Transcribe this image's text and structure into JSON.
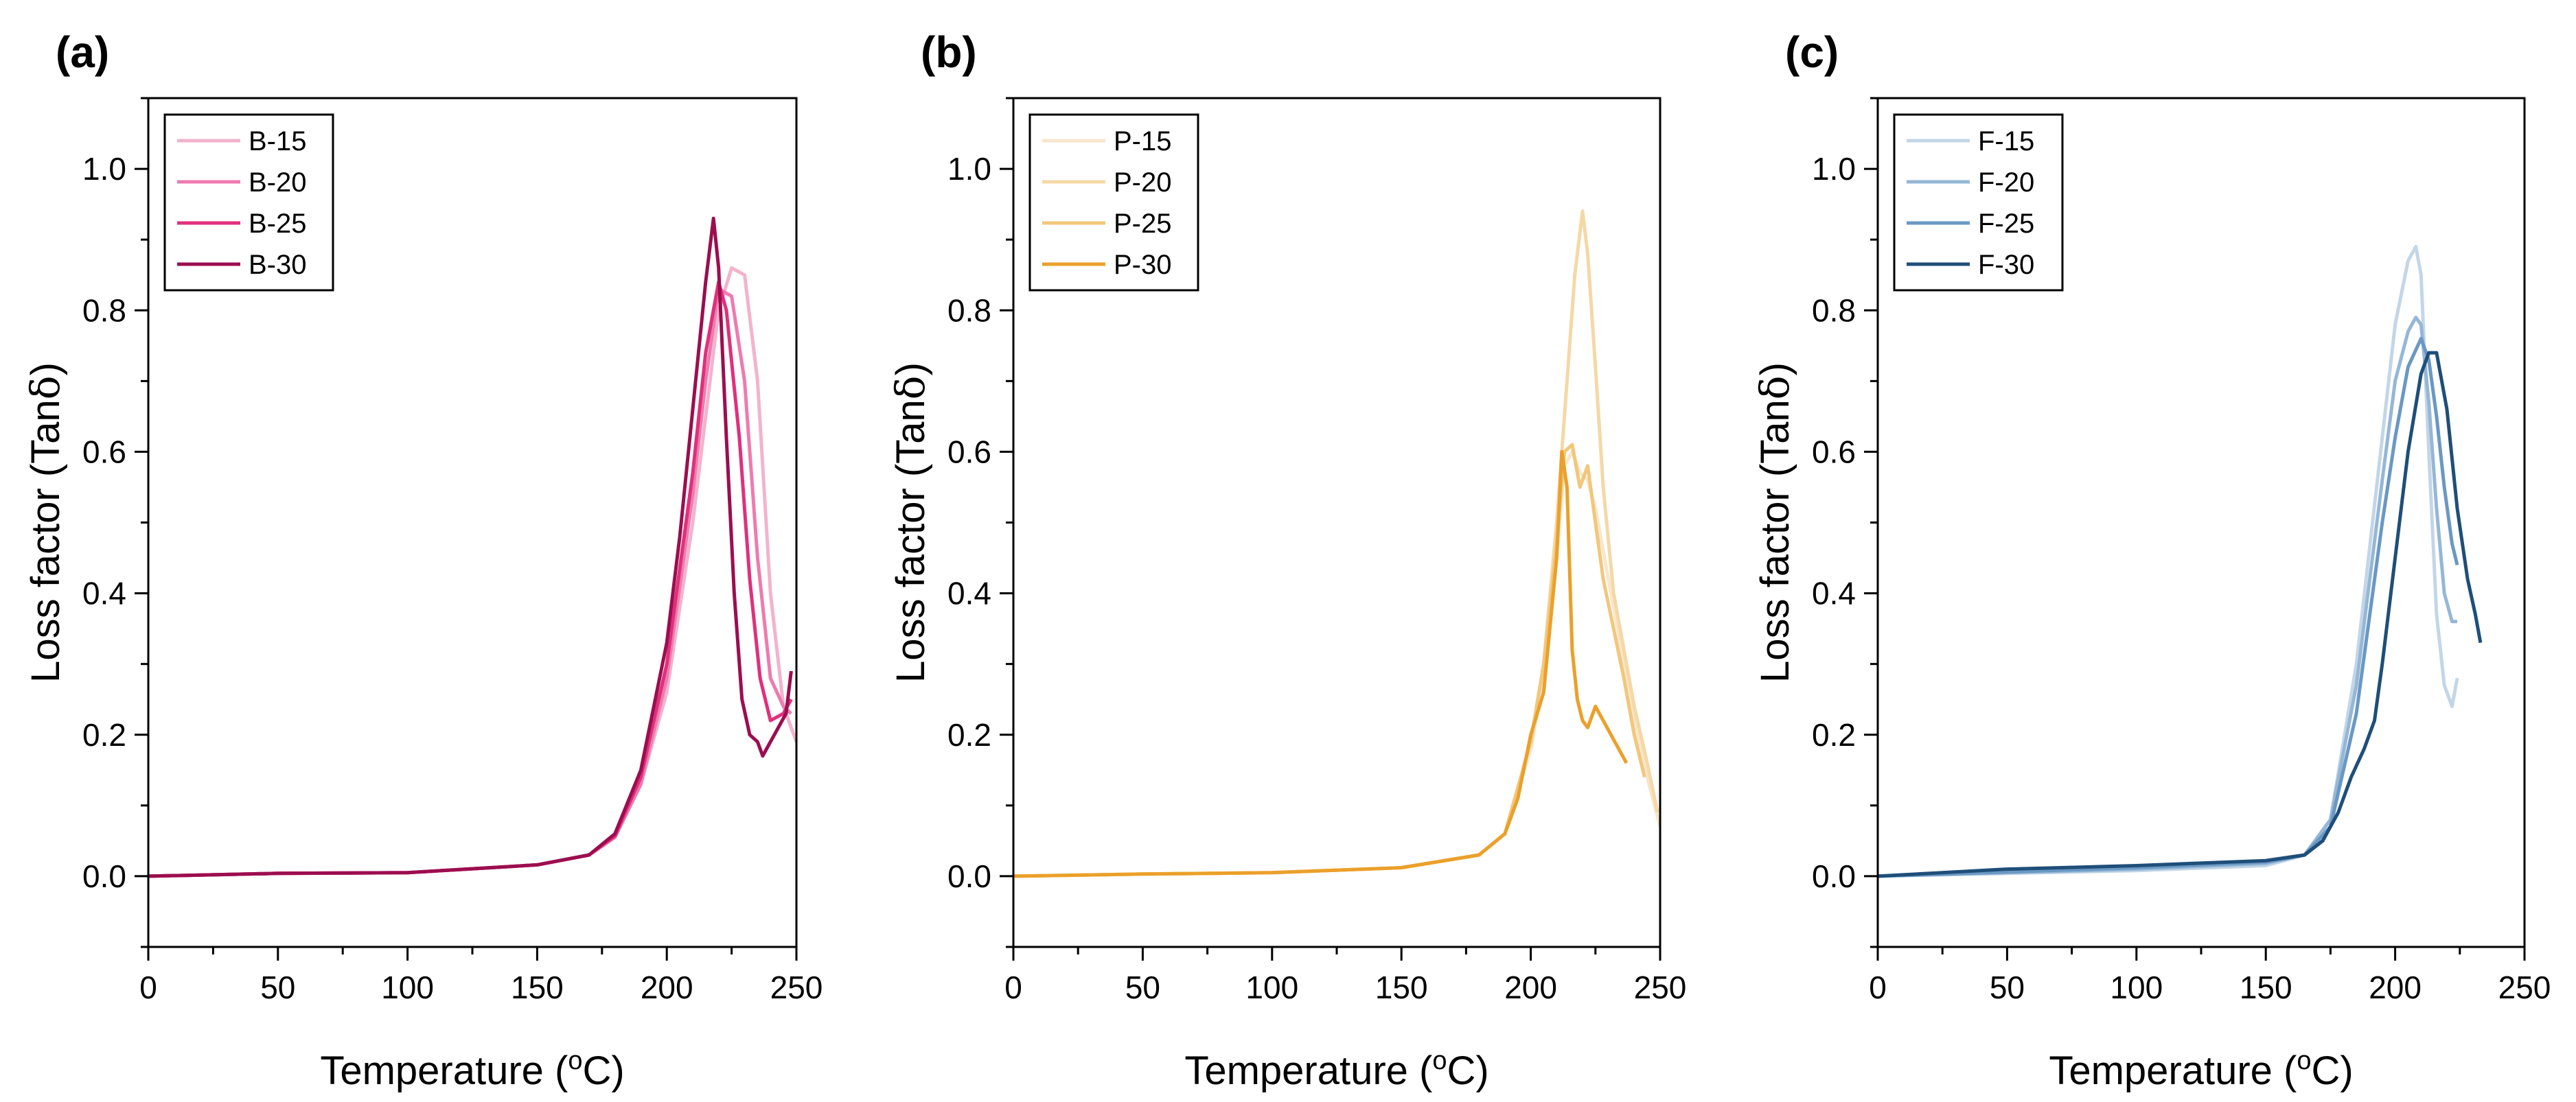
{
  "figure": {
    "background": "#ffffff"
  },
  "chart_data": [
    {
      "type": "line",
      "panel_label": "(a)",
      "xlabel": "Temperature (",
      "xlabel_sup": "o",
      "xlabel_unit": "C)",
      "ylabel": "Loss factor (Tan",
      "ylabel_symbol": "δ",
      "ylabel_close": ")",
      "xlim": [
        0,
        250
      ],
      "ylim": [
        -0.1,
        1.1
      ],
      "xticks": [
        0,
        50,
        100,
        150,
        200,
        250
      ],
      "xtick_labels": [
        "0",
        "50",
        "100",
        "150",
        "200",
        "250"
      ],
      "yticks": [
        0.0,
        0.2,
        0.4,
        0.6,
        0.8,
        1.0
      ],
      "ytick_labels": [
        "0.0",
        "0.2",
        "0.4",
        "0.6",
        "0.8",
        "1.0"
      ],
      "legend_position": "top-left",
      "series": [
        {
          "name": "B-15",
          "color": "#f3b3cc",
          "x": [
            0,
            50,
            100,
            150,
            170,
            180,
            190,
            200,
            210,
            215,
            220,
            225,
            230,
            235,
            240,
            245,
            250
          ],
          "y": [
            0.0,
            0.004,
            0.005,
            0.016,
            0.03,
            0.055,
            0.13,
            0.26,
            0.5,
            0.65,
            0.8,
            0.86,
            0.85,
            0.7,
            0.4,
            0.24,
            0.19
          ]
        },
        {
          "name": "B-20",
          "color": "#ee7bb0",
          "x": [
            0,
            50,
            100,
            150,
            170,
            180,
            190,
            200,
            210,
            215,
            220,
            225,
            230,
            235,
            240,
            245,
            248
          ],
          "y": [
            0.0,
            0.004,
            0.005,
            0.016,
            0.03,
            0.055,
            0.13,
            0.28,
            0.54,
            0.7,
            0.83,
            0.82,
            0.7,
            0.45,
            0.28,
            0.24,
            0.23
          ]
        },
        {
          "name": "B-25",
          "color": "#e0307c",
          "x": [
            0,
            50,
            100,
            150,
            170,
            180,
            190,
            200,
            210,
            215,
            220,
            223,
            228,
            232,
            236,
            240,
            245,
            248
          ],
          "y": [
            0.0,
            0.004,
            0.005,
            0.016,
            0.03,
            0.057,
            0.14,
            0.3,
            0.57,
            0.74,
            0.84,
            0.8,
            0.62,
            0.42,
            0.28,
            0.22,
            0.23,
            0.25
          ]
        },
        {
          "name": "B-30",
          "color": "#9b0e4f",
          "x": [
            0,
            50,
            100,
            150,
            170,
            180,
            190,
            200,
            205,
            210,
            215,
            218,
            220,
            223,
            226,
            229,
            232,
            235,
            237,
            240,
            243,
            246,
            248
          ],
          "y": [
            0.0,
            0.004,
            0.005,
            0.016,
            0.03,
            0.06,
            0.15,
            0.33,
            0.48,
            0.66,
            0.84,
            0.93,
            0.86,
            0.62,
            0.4,
            0.25,
            0.2,
            0.19,
            0.17,
            0.19,
            0.21,
            0.23,
            0.29
          ]
        }
      ]
    },
    {
      "type": "line",
      "panel_label": "(b)",
      "xlabel": "Temperature (",
      "xlabel_sup": "o",
      "xlabel_unit": "C)",
      "ylabel": "Loss factor (Tan",
      "ylabel_symbol": "δ",
      "ylabel_close": ")",
      "xlim": [
        0,
        250
      ],
      "ylim": [
        -0.1,
        1.1
      ],
      "xticks": [
        0,
        50,
        100,
        150,
        200,
        250
      ],
      "xtick_labels": [
        "0",
        "50",
        "100",
        "150",
        "200",
        "250"
      ],
      "yticks": [
        0.0,
        0.2,
        0.4,
        0.6,
        0.8,
        1.0
      ],
      "ytick_labels": [
        "0.0",
        "0.2",
        "0.4",
        "0.6",
        "0.8",
        "1.0"
      ],
      "legend_position": "top-left",
      "series": [
        {
          "name": "P-15",
          "color": "#f8e6cc",
          "x": [
            0,
            50,
            100,
            150,
            180,
            190,
            200,
            205,
            210,
            213,
            216,
            219,
            222,
            225,
            228,
            232,
            236,
            240,
            245,
            250
          ],
          "y": [
            0.0,
            0.003,
            0.005,
            0.012,
            0.03,
            0.06,
            0.18,
            0.28,
            0.45,
            0.58,
            0.6,
            0.57,
            0.56,
            0.52,
            0.46,
            0.38,
            0.3,
            0.22,
            0.14,
            0.07
          ]
        },
        {
          "name": "P-20",
          "color": "#f5d8a6",
          "x": [
            0,
            50,
            100,
            150,
            180,
            190,
            200,
            205,
            210,
            214,
            217,
            220,
            222,
            225,
            228,
            232,
            236,
            240,
            245,
            249
          ],
          "y": [
            0.0,
            0.003,
            0.005,
            0.012,
            0.03,
            0.06,
            0.19,
            0.3,
            0.5,
            0.7,
            0.85,
            0.94,
            0.88,
            0.72,
            0.55,
            0.4,
            0.32,
            0.24,
            0.16,
            0.09
          ]
        },
        {
          "name": "P-25",
          "color": "#f2c77b",
          "x": [
            0,
            50,
            100,
            150,
            180,
            190,
            200,
            205,
            210,
            213,
            216,
            219,
            222,
            225,
            228,
            232,
            236,
            240,
            244
          ],
          "y": [
            0.0,
            0.003,
            0.005,
            0.012,
            0.03,
            0.06,
            0.19,
            0.3,
            0.47,
            0.6,
            0.61,
            0.55,
            0.58,
            0.5,
            0.42,
            0.35,
            0.28,
            0.2,
            0.14
          ]
        },
        {
          "name": "P-30",
          "color": "#eba02a",
          "x": [
            0,
            50,
            100,
            150,
            180,
            190,
            195,
            200,
            205,
            210,
            212,
            214,
            216,
            218,
            220,
            222,
            225,
            228,
            231,
            234,
            237
          ],
          "y": [
            0.0,
            0.003,
            0.005,
            0.012,
            0.03,
            0.06,
            0.11,
            0.2,
            0.26,
            0.45,
            0.6,
            0.55,
            0.32,
            0.25,
            0.22,
            0.21,
            0.24,
            0.22,
            0.2,
            0.18,
            0.16
          ]
        }
      ]
    },
    {
      "type": "line",
      "panel_label": "(c)",
      "xlabel": "Temperature (",
      "xlabel_sup": "o",
      "xlabel_unit": "C)",
      "ylabel": "Loss factor (Tan",
      "ylabel_symbol": "δ",
      "ylabel_close": ")",
      "xlim": [
        0,
        250
      ],
      "ylim": [
        -0.1,
        1.1
      ],
      "xticks": [
        0,
        50,
        100,
        150,
        200,
        250
      ],
      "xtick_labels": [
        "0",
        "50",
        "100",
        "150",
        "200",
        "250"
      ],
      "yticks": [
        0.0,
        0.2,
        0.4,
        0.6,
        0.8,
        1.0
      ],
      "ytick_labels": [
        "0.0",
        "0.2",
        "0.4",
        "0.6",
        "0.8",
        "1.0"
      ],
      "legend_position": "top-left",
      "series": [
        {
          "name": "F-15",
          "color": "#c3d6e8",
          "x": [
            0,
            50,
            100,
            150,
            165,
            175,
            185,
            195,
            200,
            205,
            208,
            210,
            213,
            216,
            219,
            222,
            224
          ],
          "y": [
            0.0,
            0.004,
            0.008,
            0.015,
            0.03,
            0.08,
            0.3,
            0.62,
            0.78,
            0.87,
            0.89,
            0.85,
            0.6,
            0.37,
            0.27,
            0.24,
            0.28
          ]
        },
        {
          "name": "F-20",
          "color": "#95b7d7",
          "x": [
            0,
            50,
            100,
            150,
            165,
            175,
            185,
            195,
            200,
            205,
            208,
            210,
            213,
            216,
            219,
            222,
            224
          ],
          "y": [
            0.0,
            0.005,
            0.01,
            0.018,
            0.03,
            0.08,
            0.27,
            0.56,
            0.7,
            0.77,
            0.79,
            0.78,
            0.67,
            0.52,
            0.4,
            0.36,
            0.36
          ]
        },
        {
          "name": "F-25",
          "color": "#6a98c4",
          "x": [
            0,
            50,
            100,
            150,
            165,
            175,
            185,
            195,
            200,
            205,
            210,
            213,
            216,
            219,
            222,
            224
          ],
          "y": [
            0.0,
            0.006,
            0.012,
            0.02,
            0.03,
            0.07,
            0.23,
            0.5,
            0.62,
            0.72,
            0.76,
            0.73,
            0.65,
            0.55,
            0.47,
            0.44
          ]
        },
        {
          "name": "F-30",
          "color": "#1f4e79",
          "x": [
            0,
            50,
            100,
            150,
            165,
            172,
            178,
            183,
            188,
            192,
            195,
            200,
            205,
            210,
            213,
            216,
            220,
            224,
            228,
            231,
            233
          ],
          "y": [
            0.0,
            0.01,
            0.015,
            0.022,
            0.03,
            0.05,
            0.09,
            0.14,
            0.18,
            0.22,
            0.3,
            0.45,
            0.6,
            0.71,
            0.74,
            0.74,
            0.66,
            0.52,
            0.42,
            0.37,
            0.33
          ]
        }
      ]
    }
  ]
}
